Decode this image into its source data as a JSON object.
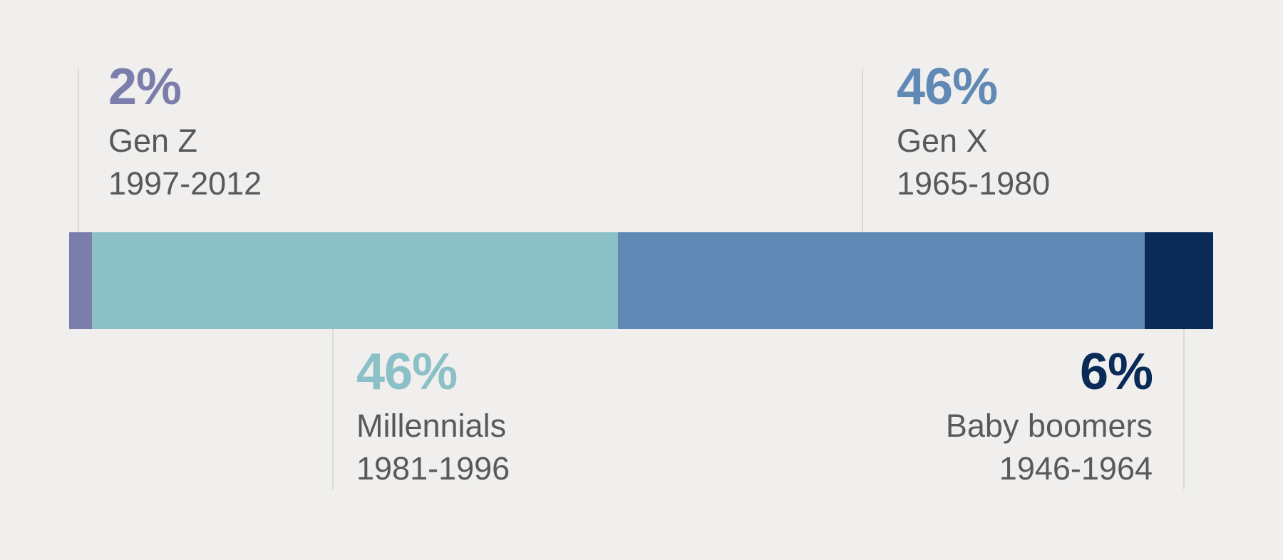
{
  "chart_data": {
    "type": "bar",
    "variant": "horizontal_stacked_100_percent",
    "orientation": "horizontal",
    "unit": "%",
    "total": 100,
    "axes": "none",
    "gridlines": "off",
    "legend": "none",
    "background_color": "#f0efee",
    "label_text_color": "#58595b",
    "callout_line_color": "#d9d9d8",
    "categories": [
      "Gen Z",
      "Millennials",
      "Gen X",
      "Baby boomers"
    ],
    "values": [
      2,
      46,
      46,
      6
    ],
    "segments": [
      {
        "name": "Gen Z",
        "years": "1997-2012",
        "value": 2,
        "value_label": "2%",
        "color": "#7b7dab",
        "callout_position": "top-left"
      },
      {
        "name": "Millennials",
        "years": "1981-1996",
        "value": 46,
        "value_label": "46%",
        "color": "#8ac0c6",
        "callout_position": "bottom-left"
      },
      {
        "name": "Gen X",
        "years": "1965-1980",
        "value": 46,
        "value_label": "46%",
        "color": "#6089b6",
        "callout_position": "top-left"
      },
      {
        "name": "Baby boomers",
        "years": "1946-1964",
        "value": 6,
        "value_label": "6%",
        "color": "#0a2a57",
        "callout_position": "bottom-right"
      }
    ]
  }
}
